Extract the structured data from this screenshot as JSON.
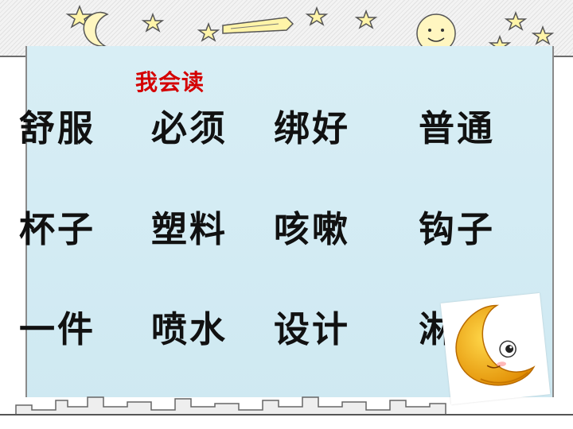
{
  "heading": "我会读",
  "words": [
    [
      "舒服",
      "必须",
      "绑好",
      "普通"
    ],
    [
      "杯子",
      "塑料",
      "咳嗽",
      "钩子"
    ],
    [
      "一件",
      "喷水",
      "设计",
      "淋"
    ]
  ],
  "colors": {
    "heading": "#d40000",
    "panel": "#d8eef5",
    "text": "#111111",
    "moon": "#f2a800"
  }
}
